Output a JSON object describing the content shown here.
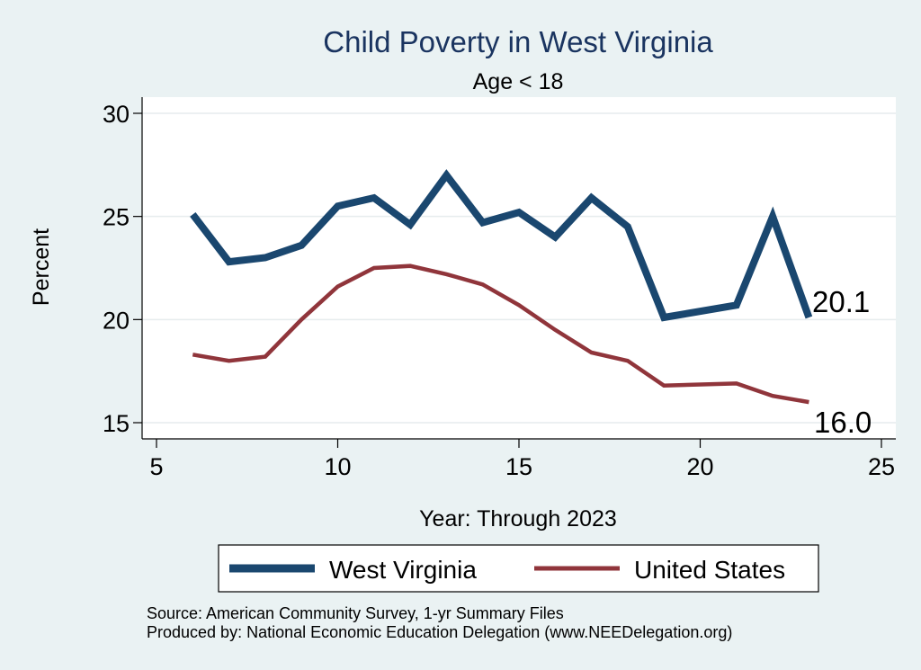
{
  "chart_data": {
    "type": "line",
    "title": "Child Poverty in West Virginia",
    "subtitle": "Age < 18",
    "xlabel": "Year: Through 2023",
    "ylabel": "Percent",
    "xlim": [
      5,
      25
    ],
    "ylim": [
      15,
      30
    ],
    "xticks": [
      5,
      10,
      15,
      20,
      25
    ],
    "yticks": [
      15,
      20,
      25,
      30
    ],
    "grid": true,
    "legend_position": "bottom",
    "series": [
      {
        "name": "West Virginia",
        "color": "#1a476f",
        "x": [
          6,
          7,
          8,
          9,
          10,
          11,
          12,
          13,
          14,
          15,
          16,
          17,
          18,
          19,
          21,
          22,
          23
        ],
        "y": [
          25.1,
          22.8,
          23.0,
          23.6,
          25.5,
          25.9,
          24.6,
          27.0,
          24.7,
          25.2,
          24.0,
          25.9,
          24.5,
          20.1,
          20.7,
          25.0,
          20.1
        ],
        "end_label": "20.1"
      },
      {
        "name": "United States",
        "color": "#90353b",
        "x": [
          6,
          7,
          8,
          9,
          10,
          11,
          12,
          13,
          14,
          15,
          16,
          17,
          18,
          19,
          21,
          22,
          23
        ],
        "y": [
          18.3,
          18.0,
          18.2,
          20.0,
          21.6,
          22.5,
          22.6,
          22.2,
          21.7,
          20.7,
          19.5,
          18.4,
          18.0,
          16.8,
          16.9,
          16.3,
          16.0
        ],
        "end_label": "16.0"
      }
    ]
  },
  "footnotes": [
    "Source: American Community Survey, 1-yr Summary Files",
    "Produced by: National Economic Education Delegation (www.NEEDelegation.org)"
  ]
}
